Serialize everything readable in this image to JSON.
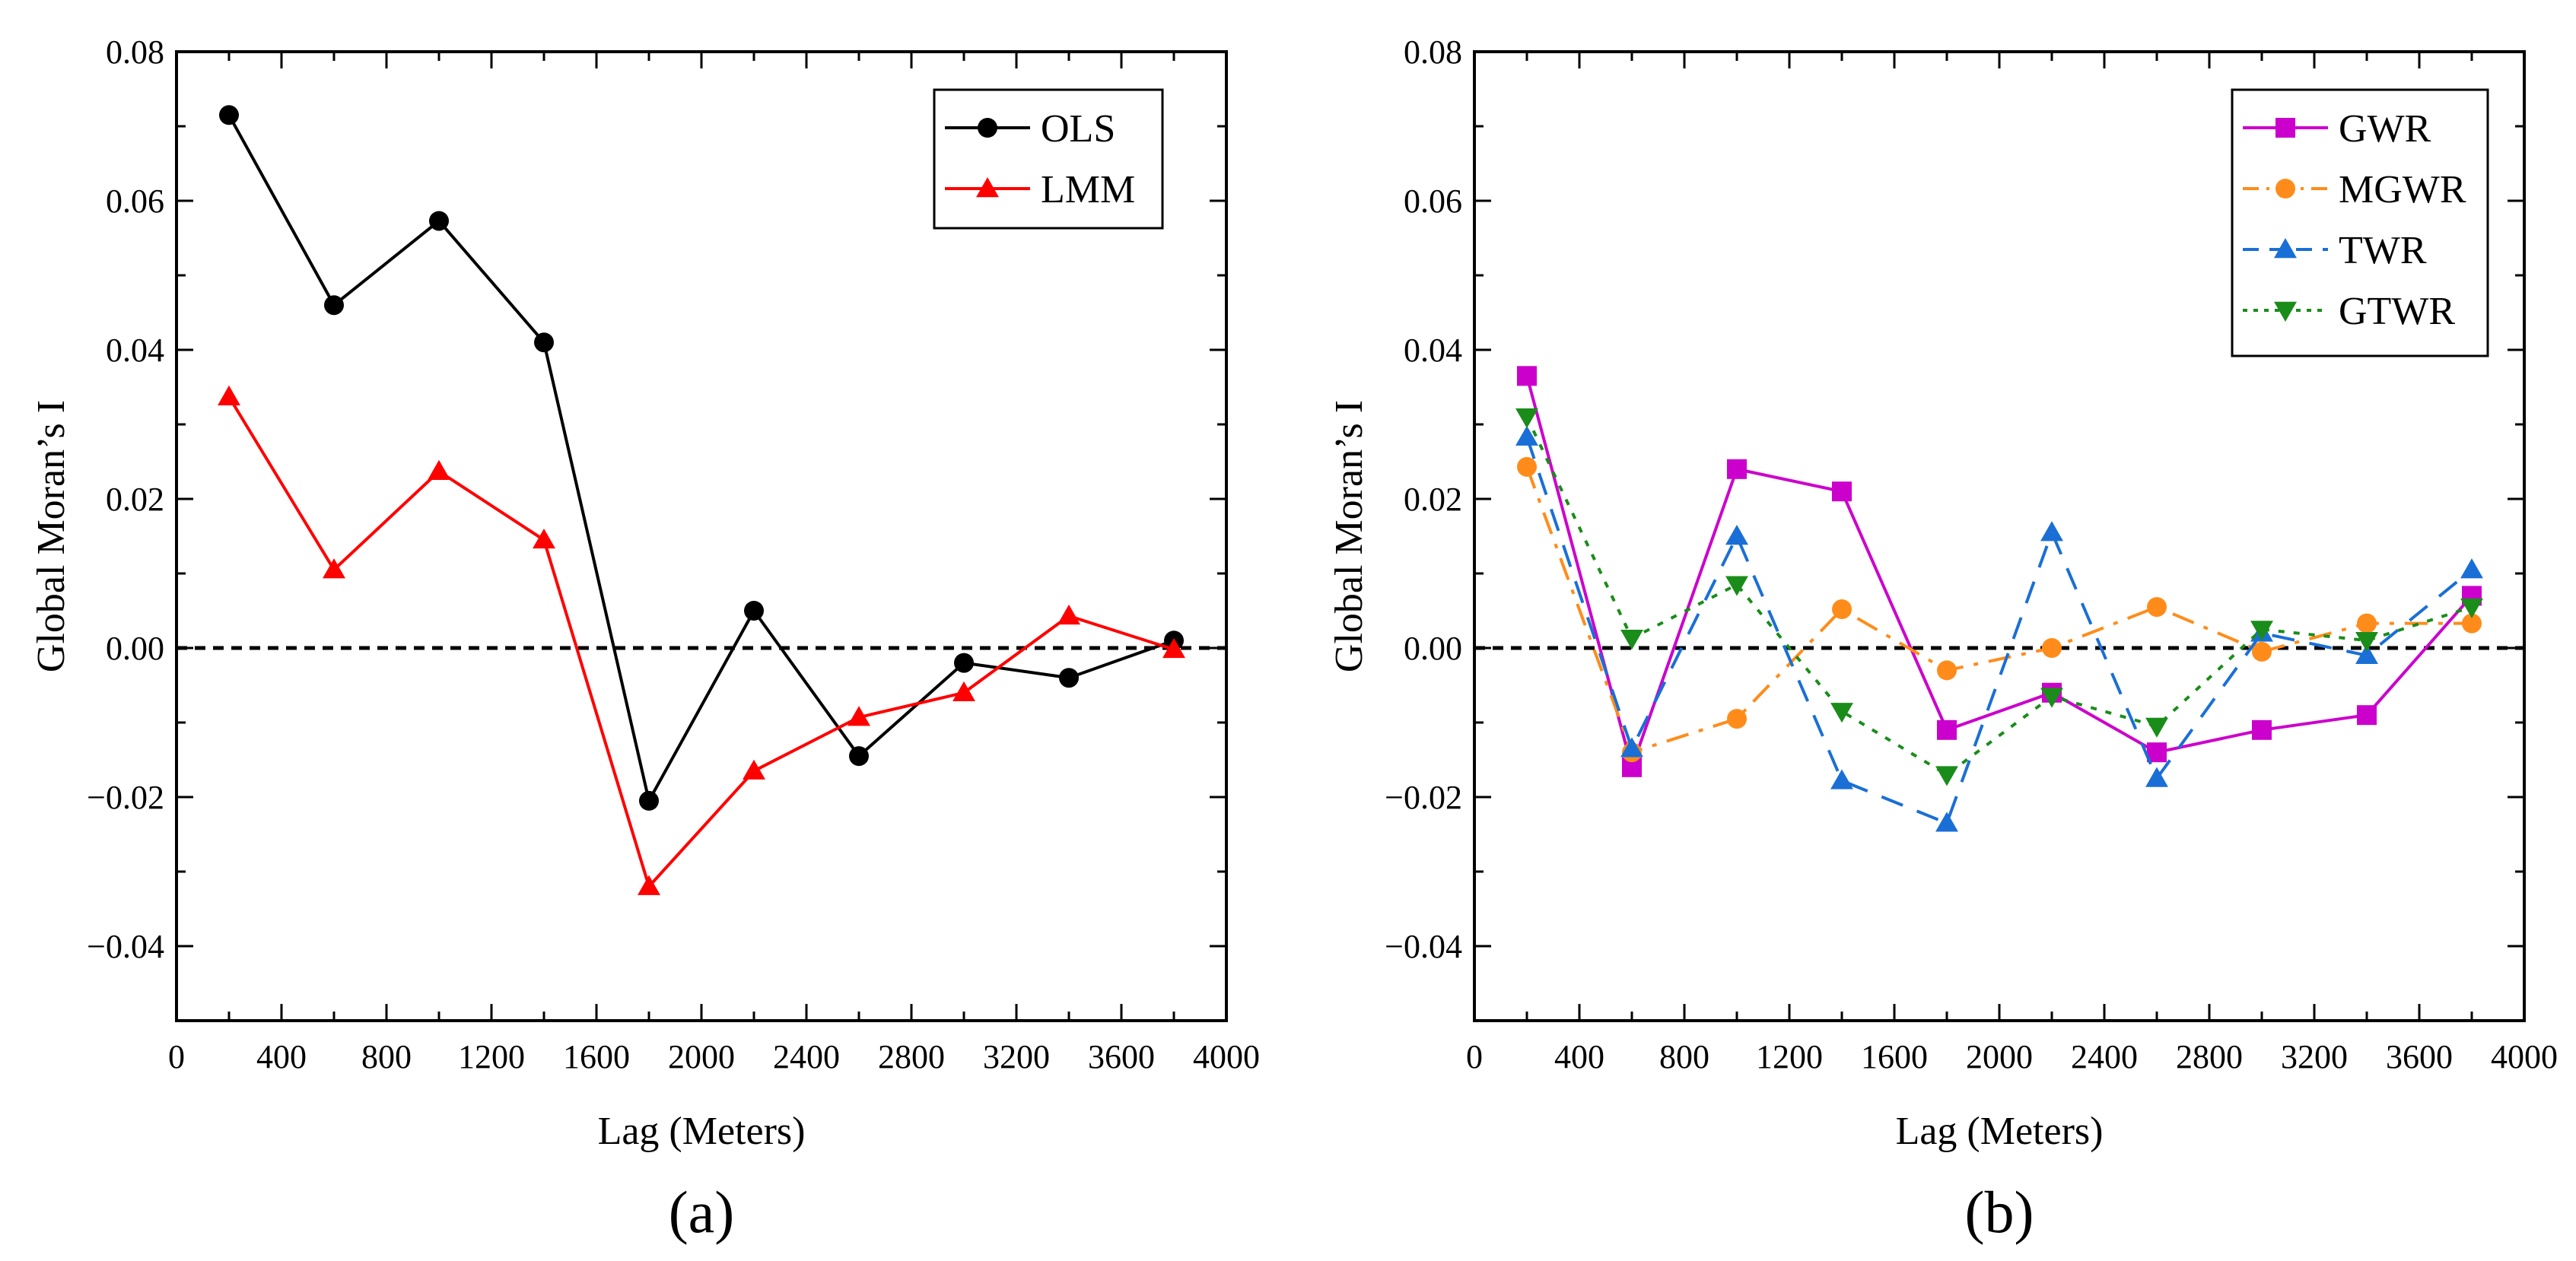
{
  "chart_data": [
    {
      "type": "line",
      "panel_label": "(a)",
      "xlabel": "Lag (Meters)",
      "ylabel": "Global Moran’s I",
      "xlim": [
        0,
        4000
      ],
      "ylim": [
        -0.05,
        0.08
      ],
      "x_ticks": [
        0,
        400,
        800,
        1200,
        1600,
        2000,
        2400,
        2800,
        3200,
        3600,
        4000
      ],
      "x_tick_labels": [
        "0",
        "400",
        "800",
        "1200",
        "1600",
        "2000",
        "2400",
        "2800",
        "3200",
        "3600",
        "4000"
      ],
      "y_ticks": [
        -0.04,
        -0.02,
        0.0,
        0.02,
        0.04,
        0.06,
        0.08
      ],
      "y_tick_labels": [
        "−0.04",
        "−0.02",
        "0.00",
        "0.02",
        "0.04",
        "0.06",
        "0.08"
      ],
      "grid": false,
      "reference_line": 0,
      "legend_position": "top-right",
      "x": [
        200,
        600,
        1000,
        1400,
        1800,
        2200,
        2600,
        3000,
        3400,
        3800
      ],
      "series": [
        {
          "name": "OLS",
          "color": "#000000",
          "marker": "circle",
          "dash": "solid",
          "values": [
            0.0715,
            0.046,
            0.0573,
            0.041,
            -0.0205,
            0.005,
            -0.0145,
            -0.002,
            -0.004,
            0.001
          ]
        },
        {
          "name": "LMM",
          "color": "#ff0000",
          "marker": "triangle-up",
          "dash": "solid",
          "values": [
            0.0337,
            0.0105,
            0.0237,
            0.0145,
            -0.032,
            -0.0165,
            -0.0093,
            -0.006,
            0.0043,
            -0.0002
          ]
        }
      ]
    },
    {
      "type": "line",
      "panel_label": "(b)",
      "xlabel": "Lag (Meters)",
      "ylabel": "Global Moran’s I",
      "xlim": [
        0,
        4000
      ],
      "ylim": [
        -0.05,
        0.08
      ],
      "x_ticks": [
        0,
        400,
        800,
        1200,
        1600,
        2000,
        2400,
        2800,
        3200,
        3600,
        4000
      ],
      "x_tick_labels": [
        "0",
        "400",
        "800",
        "1200",
        "1600",
        "2000",
        "2400",
        "2800",
        "3200",
        "3600",
        "4000"
      ],
      "y_ticks": [
        -0.04,
        -0.02,
        0.0,
        0.02,
        0.04,
        0.06,
        0.08
      ],
      "y_tick_labels": [
        "−0.04",
        "−0.02",
        "0.00",
        "0.02",
        "0.04",
        "0.06",
        "0.08"
      ],
      "grid": false,
      "reference_line": 0,
      "legend_position": "top-right",
      "x": [
        200,
        600,
        1000,
        1400,
        1800,
        2200,
        2600,
        3000,
        3400,
        3800
      ],
      "series": [
        {
          "name": "GWR",
          "color": "#cc00cc",
          "marker": "square",
          "dash": "solid",
          "values": [
            0.0365,
            -0.016,
            0.024,
            0.021,
            -0.011,
            -0.006,
            -0.014,
            -0.011,
            -0.009,
            0.007
          ]
        },
        {
          "name": "MGWR",
          "color": "#ff8c1a",
          "marker": "circle",
          "dash": "dash-dot",
          "values": [
            0.0243,
            -0.014,
            -0.0095,
            0.0052,
            -0.003,
            0.0,
            0.0055,
            -0.0005,
            0.0033,
            0.0033
          ]
        },
        {
          "name": "TWR",
          "color": "#1a6fd6",
          "marker": "triangle-up",
          "dash": "dash",
          "values": [
            0.0283,
            -0.0135,
            0.015,
            -0.0178,
            -0.0235,
            0.0155,
            -0.0175,
            0.002,
            -0.001,
            0.0105
          ]
        },
        {
          "name": "GTWR",
          "color": "#1a8c1a",
          "marker": "triangle-down",
          "dash": "dot",
          "values": [
            0.031,
            0.0013,
            0.0085,
            -0.0085,
            -0.017,
            -0.0065,
            -0.0105,
            0.0025,
            0.001,
            0.0055
          ]
        }
      ]
    }
  ]
}
